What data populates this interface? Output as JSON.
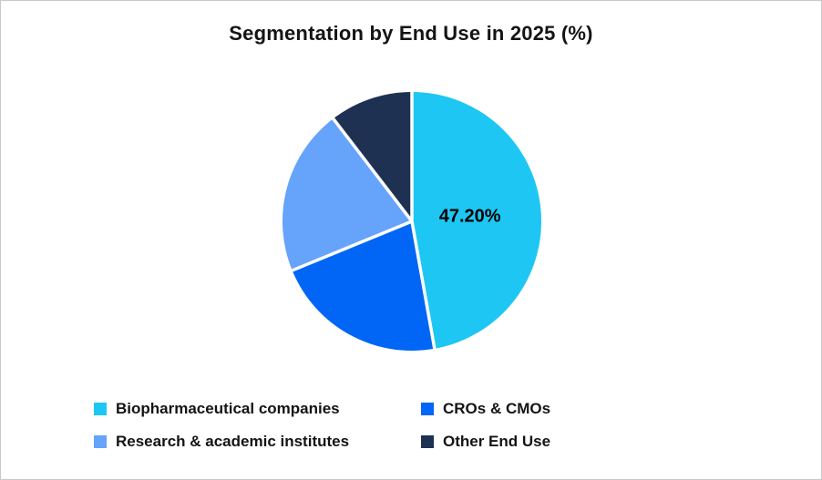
{
  "page": {
    "background": "#ffffff",
    "border_color": "#c9c9c9"
  },
  "chart_data": {
    "type": "pie",
    "title": "Segmentation by End Use in 2025 (%)",
    "start_angle_deg": 0,
    "direction": "clockwise",
    "legend_position": "bottom",
    "data_label_color": "#000000",
    "slice_divider_color": "#ffffff",
    "slices": [
      {
        "label": "Biopharmaceutical companies",
        "value": 47.2,
        "color": "#1ec7f3",
        "data_label": "47.20%"
      },
      {
        "label": "CROs & CMOs",
        "value": 21.6,
        "color": "#0166f5",
        "data_label": ""
      },
      {
        "label": "Research & academic institutes",
        "value": 20.8,
        "color": "#66a3fa",
        "data_label": ""
      },
      {
        "label": "Other End Use",
        "value": 10.4,
        "color": "#1f3153",
        "data_label": ""
      }
    ]
  }
}
